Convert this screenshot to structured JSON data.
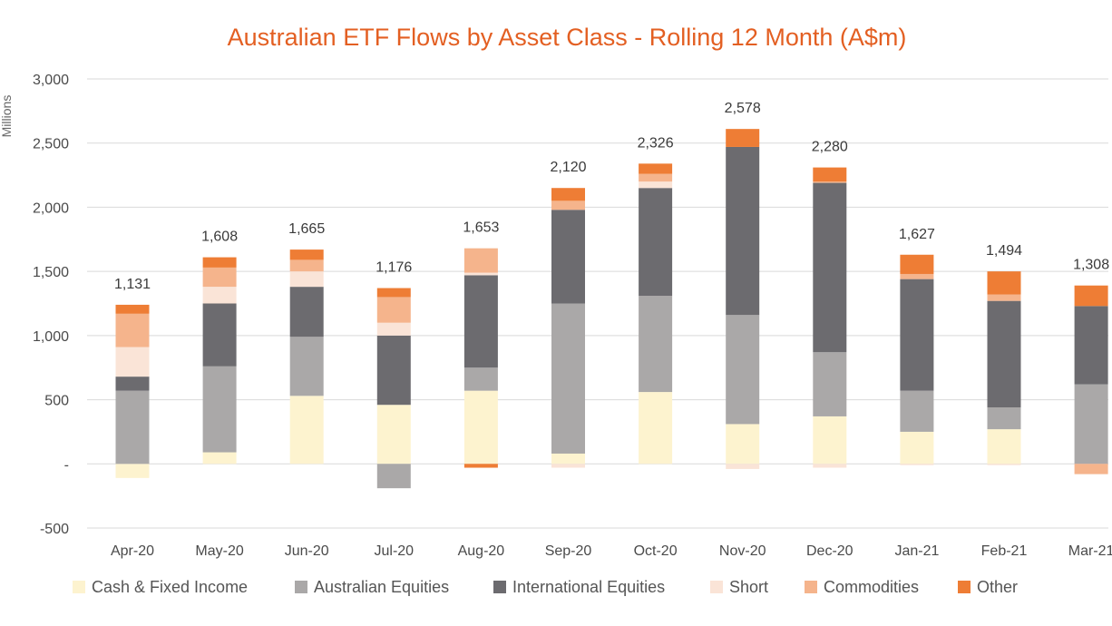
{
  "chart_data": {
    "type": "bar",
    "stacked": true,
    "title": "Australian ETF Flows by Asset Class - Rolling 12 Month (A$m)",
    "ylabel": "Millions",
    "xlabel": "",
    "ylim": [
      -500,
      3000
    ],
    "yticks": [
      -500,
      0,
      500,
      1000,
      1500,
      2000,
      2500,
      3000
    ],
    "ytick_labels": [
      "-500",
      "-",
      "500",
      "1,000",
      "1,500",
      "2,000",
      "2,500",
      "3,000"
    ],
    "grid": "horizontal",
    "legend_position": "bottom",
    "categories": [
      "Apr-20",
      "May-20",
      "Jun-20",
      "Jul-20",
      "Aug-20",
      "Sep-20",
      "Oct-20",
      "Nov-20",
      "Dec-20",
      "Jan-21",
      "Feb-21",
      "Mar-21"
    ],
    "totals": [
      1131,
      1608,
      1665,
      1176,
      1653,
      2120,
      2326,
      2578,
      2280,
      1627,
      1494,
      1308
    ],
    "total_labels": [
      "1,131",
      "1,608",
      "1,665",
      "1,176",
      "1,653",
      "2,120",
      "2,326",
      "2,578",
      "2,280",
      "1,627",
      "1,494",
      "1,308"
    ],
    "series": [
      {
        "name": "Cash & Fixed Income",
        "color": "#fdf3cf",
        "values": [
          -110,
          90,
          530,
          460,
          570,
          80,
          560,
          310,
          370,
          250,
          270,
          0
        ]
      },
      {
        "name": "Australian Equities",
        "color": "#aaa8a8",
        "values": [
          570,
          670,
          460,
          -190,
          180,
          1170,
          750,
          850,
          500,
          320,
          170,
          620
        ]
      },
      {
        "name": "International Equities",
        "color": "#6c6b6f",
        "values": [
          110,
          490,
          390,
          540,
          720,
          730,
          840,
          1310,
          1320,
          870,
          830,
          610
        ]
      },
      {
        "name": "Short",
        "color": "#fae4d7",
        "values": [
          230,
          130,
          120,
          100,
          20,
          -30,
          50,
          -40,
          -30,
          -10,
          -10,
          0
        ]
      },
      {
        "name": "Commodities",
        "color": "#f5b48c",
        "values": [
          260,
          150,
          90,
          200,
          190,
          70,
          60,
          0,
          10,
          40,
          50,
          -80
        ]
      },
      {
        "name": "Other",
        "color": "#ee7d35",
        "values": [
          70,
          80,
          80,
          70,
          -30,
          100,
          80,
          140,
          110,
          150,
          180,
          160
        ]
      }
    ]
  }
}
